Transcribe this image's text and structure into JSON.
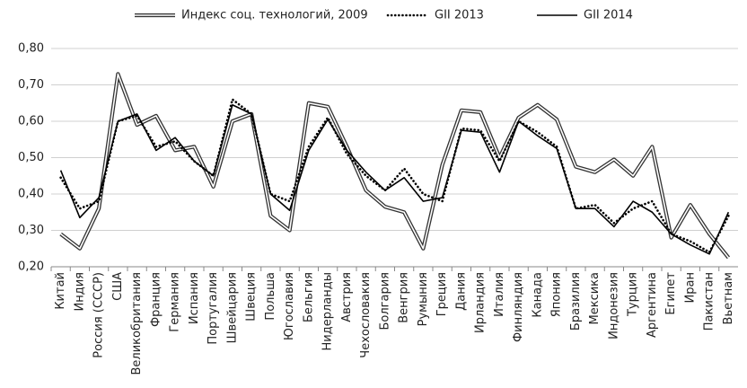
{
  "chart_data": {
    "type": "line",
    "categories": [
      "Китай",
      "Индия",
      "Россия (СССР)",
      "США",
      "Великобритания",
      "Франция",
      "Германия",
      "Испания",
      "Португалия",
      "Швейцария",
      "Швеция",
      "Польша",
      "Югославия",
      "Бельгия",
      "Нидерланды",
      "Австрия",
      "Чехословакия",
      "Болгария",
      "Венгрия",
      "Румыния",
      "Греция",
      "Дания",
      "Ирландия",
      "Италия",
      "Финляндия",
      "Канада",
      "Япония",
      "Бразилия",
      "Мексика",
      "Индонезия",
      "Турция",
      "Аргентина",
      "Египет",
      "Иран",
      "Пакистан",
      "Вьетнам"
    ],
    "series": [
      {
        "name": "Индекс соц. технологий, 2009",
        "color": "#333333",
        "style": "double",
        "values": [
          0.29,
          0.25,
          0.36,
          0.73,
          0.59,
          0.615,
          0.52,
          0.53,
          0.42,
          0.6,
          0.62,
          0.34,
          0.3,
          0.65,
          0.64,
          0.53,
          0.41,
          0.365,
          0.35,
          0.25,
          0.48,
          0.63,
          0.625,
          0.5,
          0.61,
          0.645,
          0.605,
          0.475,
          0.46,
          0.495,
          0.45,
          0.53,
          0.28,
          0.37,
          0.29,
          0.225
        ]
      },
      {
        "name": "GII 2013",
        "color": "#000000",
        "style": "dotted",
        "values": [
          0.445,
          0.36,
          0.38,
          0.6,
          0.615,
          0.53,
          0.545,
          0.49,
          0.45,
          0.66,
          0.62,
          0.4,
          0.38,
          0.53,
          0.61,
          0.51,
          0.45,
          0.41,
          0.47,
          0.4,
          0.38,
          0.58,
          0.575,
          0.49,
          0.6,
          0.57,
          0.53,
          0.36,
          0.37,
          0.32,
          0.36,
          0.38,
          0.29,
          0.27,
          0.24,
          0.34
        ]
      },
      {
        "name": "GII 2014",
        "color": "#000000",
        "style": "solid",
        "values": [
          0.465,
          0.335,
          0.39,
          0.6,
          0.62,
          0.52,
          0.555,
          0.49,
          0.45,
          0.645,
          0.62,
          0.4,
          0.355,
          0.52,
          0.605,
          0.52,
          0.46,
          0.41,
          0.445,
          0.38,
          0.39,
          0.575,
          0.57,
          0.46,
          0.6,
          0.56,
          0.525,
          0.36,
          0.36,
          0.31,
          0.38,
          0.35,
          0.29,
          0.26,
          0.235,
          0.35
        ]
      }
    ],
    "ylim": [
      0.2,
      0.8
    ],
    "yticks": [
      {
        "value": 0.2,
        "label": "0,20"
      },
      {
        "value": 0.3,
        "label": "0,30"
      },
      {
        "value": 0.4,
        "label": "0,40"
      },
      {
        "value": 0.5,
        "label": "0,50"
      },
      {
        "value": 0.6,
        "label": "0,60"
      },
      {
        "value": 0.7,
        "label": "0,70"
      },
      {
        "value": 0.8,
        "label": "0,80"
      }
    ],
    "grid": true,
    "legend": "top"
  }
}
